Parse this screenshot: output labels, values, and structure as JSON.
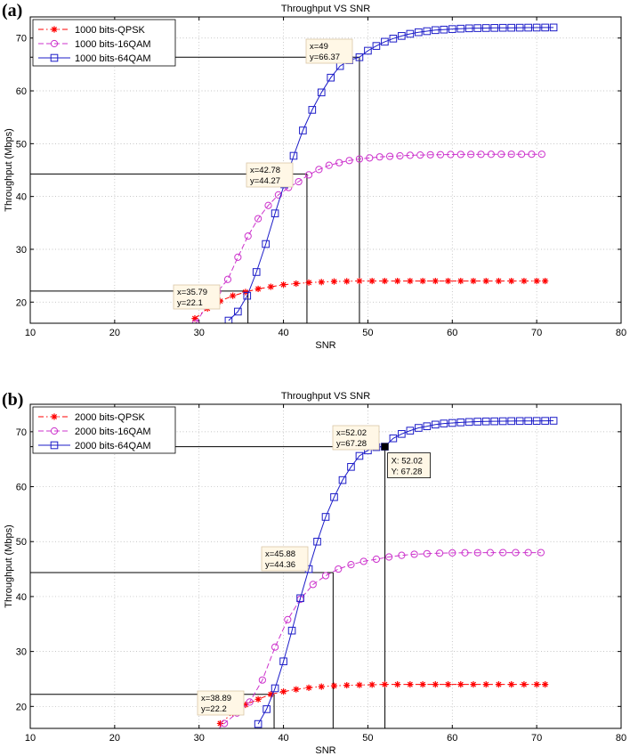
{
  "chart_data": [
    {
      "panel_label": "(a)",
      "type": "line",
      "title": "Throughput VS SNR",
      "xlabel": "SNR",
      "ylabel": "Throughput (Mbps)",
      "xlim": [
        10,
        80
      ],
      "ylim": [
        16,
        74
      ],
      "xticks": [
        10,
        20,
        30,
        40,
        50,
        60,
        70,
        80
      ],
      "yticks": [
        20,
        30,
        40,
        50,
        60,
        70
      ],
      "grid": true,
      "legend_position": "top-left",
      "series": [
        {
          "name": "1000 bits-QPSK",
          "color": "#ff0000",
          "line_style": "dash-dot",
          "marker": "star",
          "x": [
            29.5,
            31.0,
            32.5,
            34.0,
            35.5,
            37.0,
            38.5,
            40.0,
            41.5,
            43.0,
            44.5,
            46.0,
            47.5,
            49.0,
            50.5,
            52.0,
            53.5,
            55.0,
            56.5,
            58.0,
            59.5,
            61.0,
            62.5,
            64.0,
            65.5,
            67.0,
            68.5,
            70.0,
            71.0
          ],
          "y": [
            16.9,
            18.8,
            20.2,
            21.2,
            21.9,
            22.5,
            22.9,
            23.3,
            23.5,
            23.7,
            23.8,
            23.9,
            23.95,
            24.0,
            24.0,
            24.0,
            24.0,
            24.0,
            24.0,
            24.0,
            24.0,
            24.0,
            24.0,
            24.0,
            24.0,
            24.0,
            24.0,
            24.0,
            24.0
          ]
        },
        {
          "name": "1000 bits-16QAM",
          "color": "#cc33cc",
          "line_style": "dashed",
          "marker": "circle",
          "x": [
            29.6,
            31.0,
            32.2,
            33.4,
            34.6,
            35.8,
            37.0,
            38.2,
            39.4,
            40.6,
            41.8,
            43.0,
            44.2,
            45.4,
            46.6,
            47.8,
            49.0,
            50.2,
            51.4,
            52.6,
            53.8,
            55.0,
            56.2,
            57.4,
            58.6,
            59.8,
            61.0,
            62.2,
            63.4,
            64.6,
            65.8,
            67.0,
            68.2,
            69.4,
            70.6
          ],
          "y": [
            16.0,
            19.5,
            22.0,
            24.3,
            28.5,
            32.5,
            35.8,
            38.3,
            40.3,
            41.7,
            42.8,
            44.1,
            45.1,
            45.9,
            46.4,
            46.8,
            47.1,
            47.3,
            47.5,
            47.6,
            47.7,
            47.8,
            47.85,
            47.9,
            47.92,
            47.95,
            47.96,
            47.97,
            47.98,
            47.99,
            48.0,
            48.0,
            48.0,
            48.0,
            48.0
          ]
        },
        {
          "name": "1000 bits-64QAM",
          "color": "#1c1cc8",
          "line_style": "solid",
          "marker": "square",
          "x": [
            33.5,
            34.6,
            35.7,
            36.8,
            37.9,
            39.0,
            40.1,
            41.2,
            42.3,
            43.4,
            44.5,
            45.6,
            46.7,
            47.8,
            49.0,
            50.0,
            51.0,
            52.0,
            53.0,
            54.0,
            55.0,
            56.0,
            57.0,
            58.0,
            59.0,
            60.0,
            61.0,
            62.0,
            63.0,
            64.0,
            65.0,
            66.0,
            67.0,
            68.0,
            69.0,
            70.0,
            71.0,
            72.0
          ],
          "y": [
            16.5,
            18.2,
            21.2,
            25.7,
            31.0,
            36.8,
            42.3,
            47.7,
            52.5,
            56.4,
            59.7,
            62.5,
            64.7,
            65.8,
            66.37,
            67.6,
            68.5,
            69.3,
            69.9,
            70.4,
            70.8,
            71.1,
            71.3,
            71.5,
            71.6,
            71.7,
            71.78,
            71.84,
            71.88,
            71.9,
            71.92,
            71.94,
            71.95,
            71.96,
            71.97,
            71.98,
            71.99,
            72.0
          ]
        }
      ],
      "annotations": [
        {
          "x": 35.79,
          "y": 22.1,
          "line1": "x=35.79",
          "line2": "y=22.1"
        },
        {
          "x": 42.78,
          "y": 44.27,
          "line1": "x=42.78",
          "line2": "y=44.27"
        },
        {
          "x": 49,
          "y": 66.37,
          "line1": "x=49",
          "line2": "y=66.37"
        }
      ]
    },
    {
      "panel_label": "(b)",
      "type": "line",
      "title": "Throughput VS SNR",
      "xlabel": "SNR",
      "ylabel": "Throughput (Mbps)",
      "xlim": [
        10,
        80
      ],
      "ylim": [
        16,
        75
      ],
      "xticks": [
        10,
        20,
        30,
        40,
        50,
        60,
        70,
        80
      ],
      "yticks": [
        20,
        30,
        40,
        50,
        60,
        70
      ],
      "grid": true,
      "legend_position": "top-left",
      "series": [
        {
          "name": "2000 bits-QPSK",
          "color": "#ff0000",
          "line_style": "dash-dot",
          "marker": "star",
          "x": [
            32.5,
            34.0,
            35.5,
            37.0,
            38.5,
            40.0,
            41.5,
            43.0,
            44.5,
            46.0,
            47.5,
            49.0,
            50.5,
            52.0,
            53.5,
            55.0,
            56.5,
            58.0,
            59.5,
            61.0,
            62.5,
            64.0,
            65.5,
            67.0,
            68.5,
            70.0,
            71.0
          ],
          "y": [
            16.9,
            18.8,
            20.3,
            21.3,
            22.2,
            22.7,
            23.1,
            23.4,
            23.6,
            23.75,
            23.85,
            23.9,
            23.95,
            24.0,
            24.0,
            24.0,
            24.0,
            24.0,
            24.0,
            24.0,
            24.0,
            24.0,
            24.0,
            24.0,
            24.0,
            24.0,
            24.0
          ]
        },
        {
          "name": "2000 bits-16QAM",
          "color": "#cc33cc",
          "line_style": "dashed",
          "marker": "circle",
          "x": [
            31.5,
            33.0,
            34.5,
            36.0,
            37.5,
            39.0,
            40.5,
            42.0,
            43.5,
            45.0,
            46.5,
            48.0,
            49.5,
            51.0,
            52.5,
            54.0,
            55.5,
            57.0,
            58.5,
            60.0,
            61.5,
            63.0,
            64.5,
            66.0,
            67.5,
            69.0,
            70.5
          ],
          "y": [
            14.8,
            16.9,
            18.8,
            20.8,
            24.8,
            30.8,
            35.8,
            39.5,
            42.2,
            43.8,
            45.0,
            45.8,
            46.4,
            46.8,
            47.2,
            47.5,
            47.7,
            47.8,
            47.9,
            47.95,
            47.97,
            47.98,
            47.99,
            48.0,
            48.0,
            48.0,
            48.0
          ]
        },
        {
          "name": "2000 bits-64QAM",
          "color": "#1c1cc8",
          "line_style": "solid",
          "marker": "square",
          "x": [
            37.0,
            38.0,
            39.0,
            40.0,
            41.0,
            42.0,
            43.0,
            44.0,
            45.0,
            46.0,
            47.0,
            48.0,
            49.0,
            50.0,
            51.0,
            52.0,
            53.0,
            54.0,
            55.0,
            56.0,
            57.0,
            58.0,
            59.0,
            60.0,
            61.0,
            62.0,
            63.0,
            64.0,
            65.0,
            66.0,
            67.0,
            68.0,
            69.0,
            70.0,
            71.0,
            72.0
          ],
          "y": [
            16.8,
            19.5,
            23.3,
            28.2,
            33.8,
            39.7,
            45.0,
            50.0,
            54.5,
            58.1,
            61.2,
            63.6,
            65.6,
            66.6,
            67.2,
            67.28,
            68.8,
            69.6,
            70.2,
            70.7,
            71.0,
            71.3,
            71.5,
            71.6,
            71.7,
            71.78,
            71.84,
            71.88,
            71.9,
            71.92,
            71.94,
            71.95,
            71.96,
            71.97,
            71.98,
            72.0
          ]
        }
      ],
      "annotations": [
        {
          "x": 38.89,
          "y": 22.2,
          "line1": "x=38.89",
          "line2": "y=22.2"
        },
        {
          "x": 45.88,
          "y": 44.36,
          "line1": "x=45.88",
          "line2": "y=44.36"
        },
        {
          "x": 52.02,
          "y": 67.28,
          "line1": "x=52.02",
          "line2": "y=67.28"
        }
      ],
      "datatip": {
        "x": 52.02,
        "y": 67.28,
        "line1": "X: 52.02",
        "line2": "Y: 67.28"
      }
    }
  ]
}
